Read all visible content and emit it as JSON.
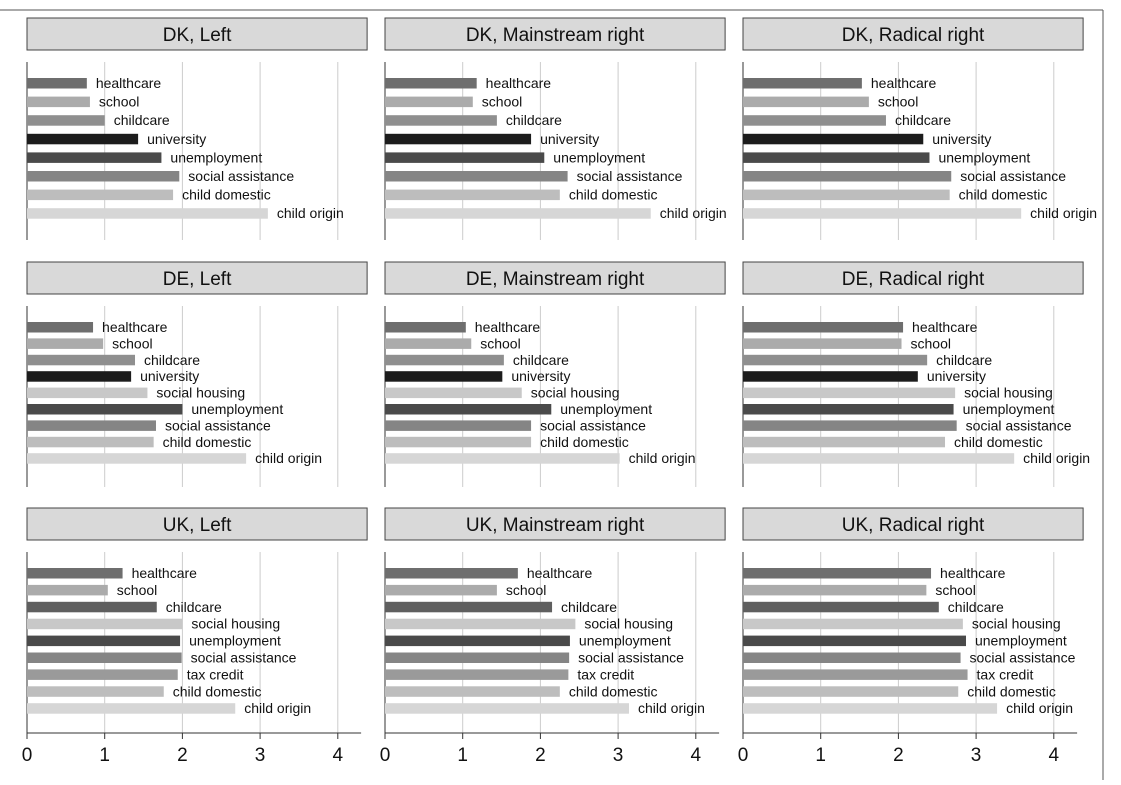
{
  "chart_data": {
    "type": "bar",
    "orientation": "horizontal",
    "grid": true,
    "xlim": [
      0,
      4.3
    ],
    "xticks": [
      0,
      1,
      2,
      3,
      4
    ],
    "shared_x_axis": true,
    "colors": {
      "healthcare": "#6e6e6e",
      "school": "#ababab",
      "childcare": "#8f8f8f",
      "childcare_uk": "#5f5f5f",
      "university": "#1c1c1c",
      "unemployment": "#4a4a4a",
      "social housing": "#c8c8c8",
      "social assistance": "#858585",
      "tax credit": "#9a9a9a",
      "child domestic": "#bdbdbd",
      "child origin": "#d6d6d6",
      "panel_header_fill": "#d9d9d9",
      "gridline": "#cccccc"
    },
    "panels": [
      {
        "title": "DK, Left",
        "categories": [
          "healthcare",
          "school",
          "childcare",
          "university",
          "unemployment",
          "social assistance",
          "child domestic",
          "child origin"
        ],
        "values": [
          0.77,
          0.81,
          1.0,
          1.43,
          1.73,
          1.96,
          1.88,
          3.1
        ]
      },
      {
        "title": "DK, Mainstream right",
        "categories": [
          "healthcare",
          "school",
          "childcare",
          "university",
          "unemployment",
          "social assistance",
          "child domestic",
          "child origin"
        ],
        "values": [
          1.18,
          1.13,
          1.44,
          1.88,
          2.05,
          2.35,
          2.25,
          3.42
        ]
      },
      {
        "title": "DK, Radical right",
        "categories": [
          "healthcare",
          "school",
          "childcare",
          "university",
          "unemployment",
          "social assistance",
          "child domestic",
          "child origin"
        ],
        "values": [
          1.53,
          1.62,
          1.84,
          2.32,
          2.4,
          2.68,
          2.66,
          3.58
        ]
      },
      {
        "title": "DE, Left",
        "categories": [
          "healthcare",
          "school",
          "childcare",
          "university",
          "social housing",
          "unemployment",
          "social assistance",
          "child domestic",
          "child origin"
        ],
        "values": [
          0.85,
          0.98,
          1.39,
          1.34,
          1.55,
          2.0,
          1.66,
          1.63,
          2.82
        ]
      },
      {
        "title": "DE, Mainstream right",
        "categories": [
          "healthcare",
          "school",
          "childcare",
          "university",
          "social housing",
          "unemployment",
          "social assistance",
          "child domestic",
          "child origin"
        ],
        "values": [
          1.04,
          1.11,
          1.53,
          1.51,
          1.76,
          2.14,
          1.88,
          1.88,
          3.02
        ]
      },
      {
        "title": "DE, Radical right",
        "categories": [
          "healthcare",
          "school",
          "childcare",
          "university",
          "social housing",
          "unemployment",
          "social assistance",
          "child domestic",
          "child origin"
        ],
        "values": [
          2.06,
          2.04,
          2.37,
          2.25,
          2.73,
          2.71,
          2.75,
          2.6,
          3.49
        ]
      },
      {
        "title": "UK, Left",
        "categories": [
          "healthcare",
          "school",
          "childcare",
          "social housing",
          "unemployment",
          "social assistance",
          "tax credit",
          "child domestic",
          "child origin"
        ],
        "values": [
          1.23,
          1.04,
          1.67,
          2.0,
          1.97,
          1.99,
          1.94,
          1.76,
          2.68
        ]
      },
      {
        "title": "UK, Mainstream right",
        "categories": [
          "healthcare",
          "school",
          "childcare",
          "social housing",
          "unemployment",
          "social assistance",
          "tax credit",
          "child domestic",
          "child origin"
        ],
        "values": [
          1.71,
          1.44,
          2.15,
          2.45,
          2.38,
          2.37,
          2.36,
          2.25,
          3.14
        ]
      },
      {
        "title": "UK, Radical right",
        "categories": [
          "healthcare",
          "school",
          "childcare",
          "social housing",
          "unemployment",
          "social assistance",
          "tax credit",
          "child domestic",
          "child origin"
        ],
        "values": [
          2.42,
          2.36,
          2.52,
          2.83,
          2.87,
          2.8,
          2.89,
          2.77,
          3.27
        ]
      }
    ]
  }
}
